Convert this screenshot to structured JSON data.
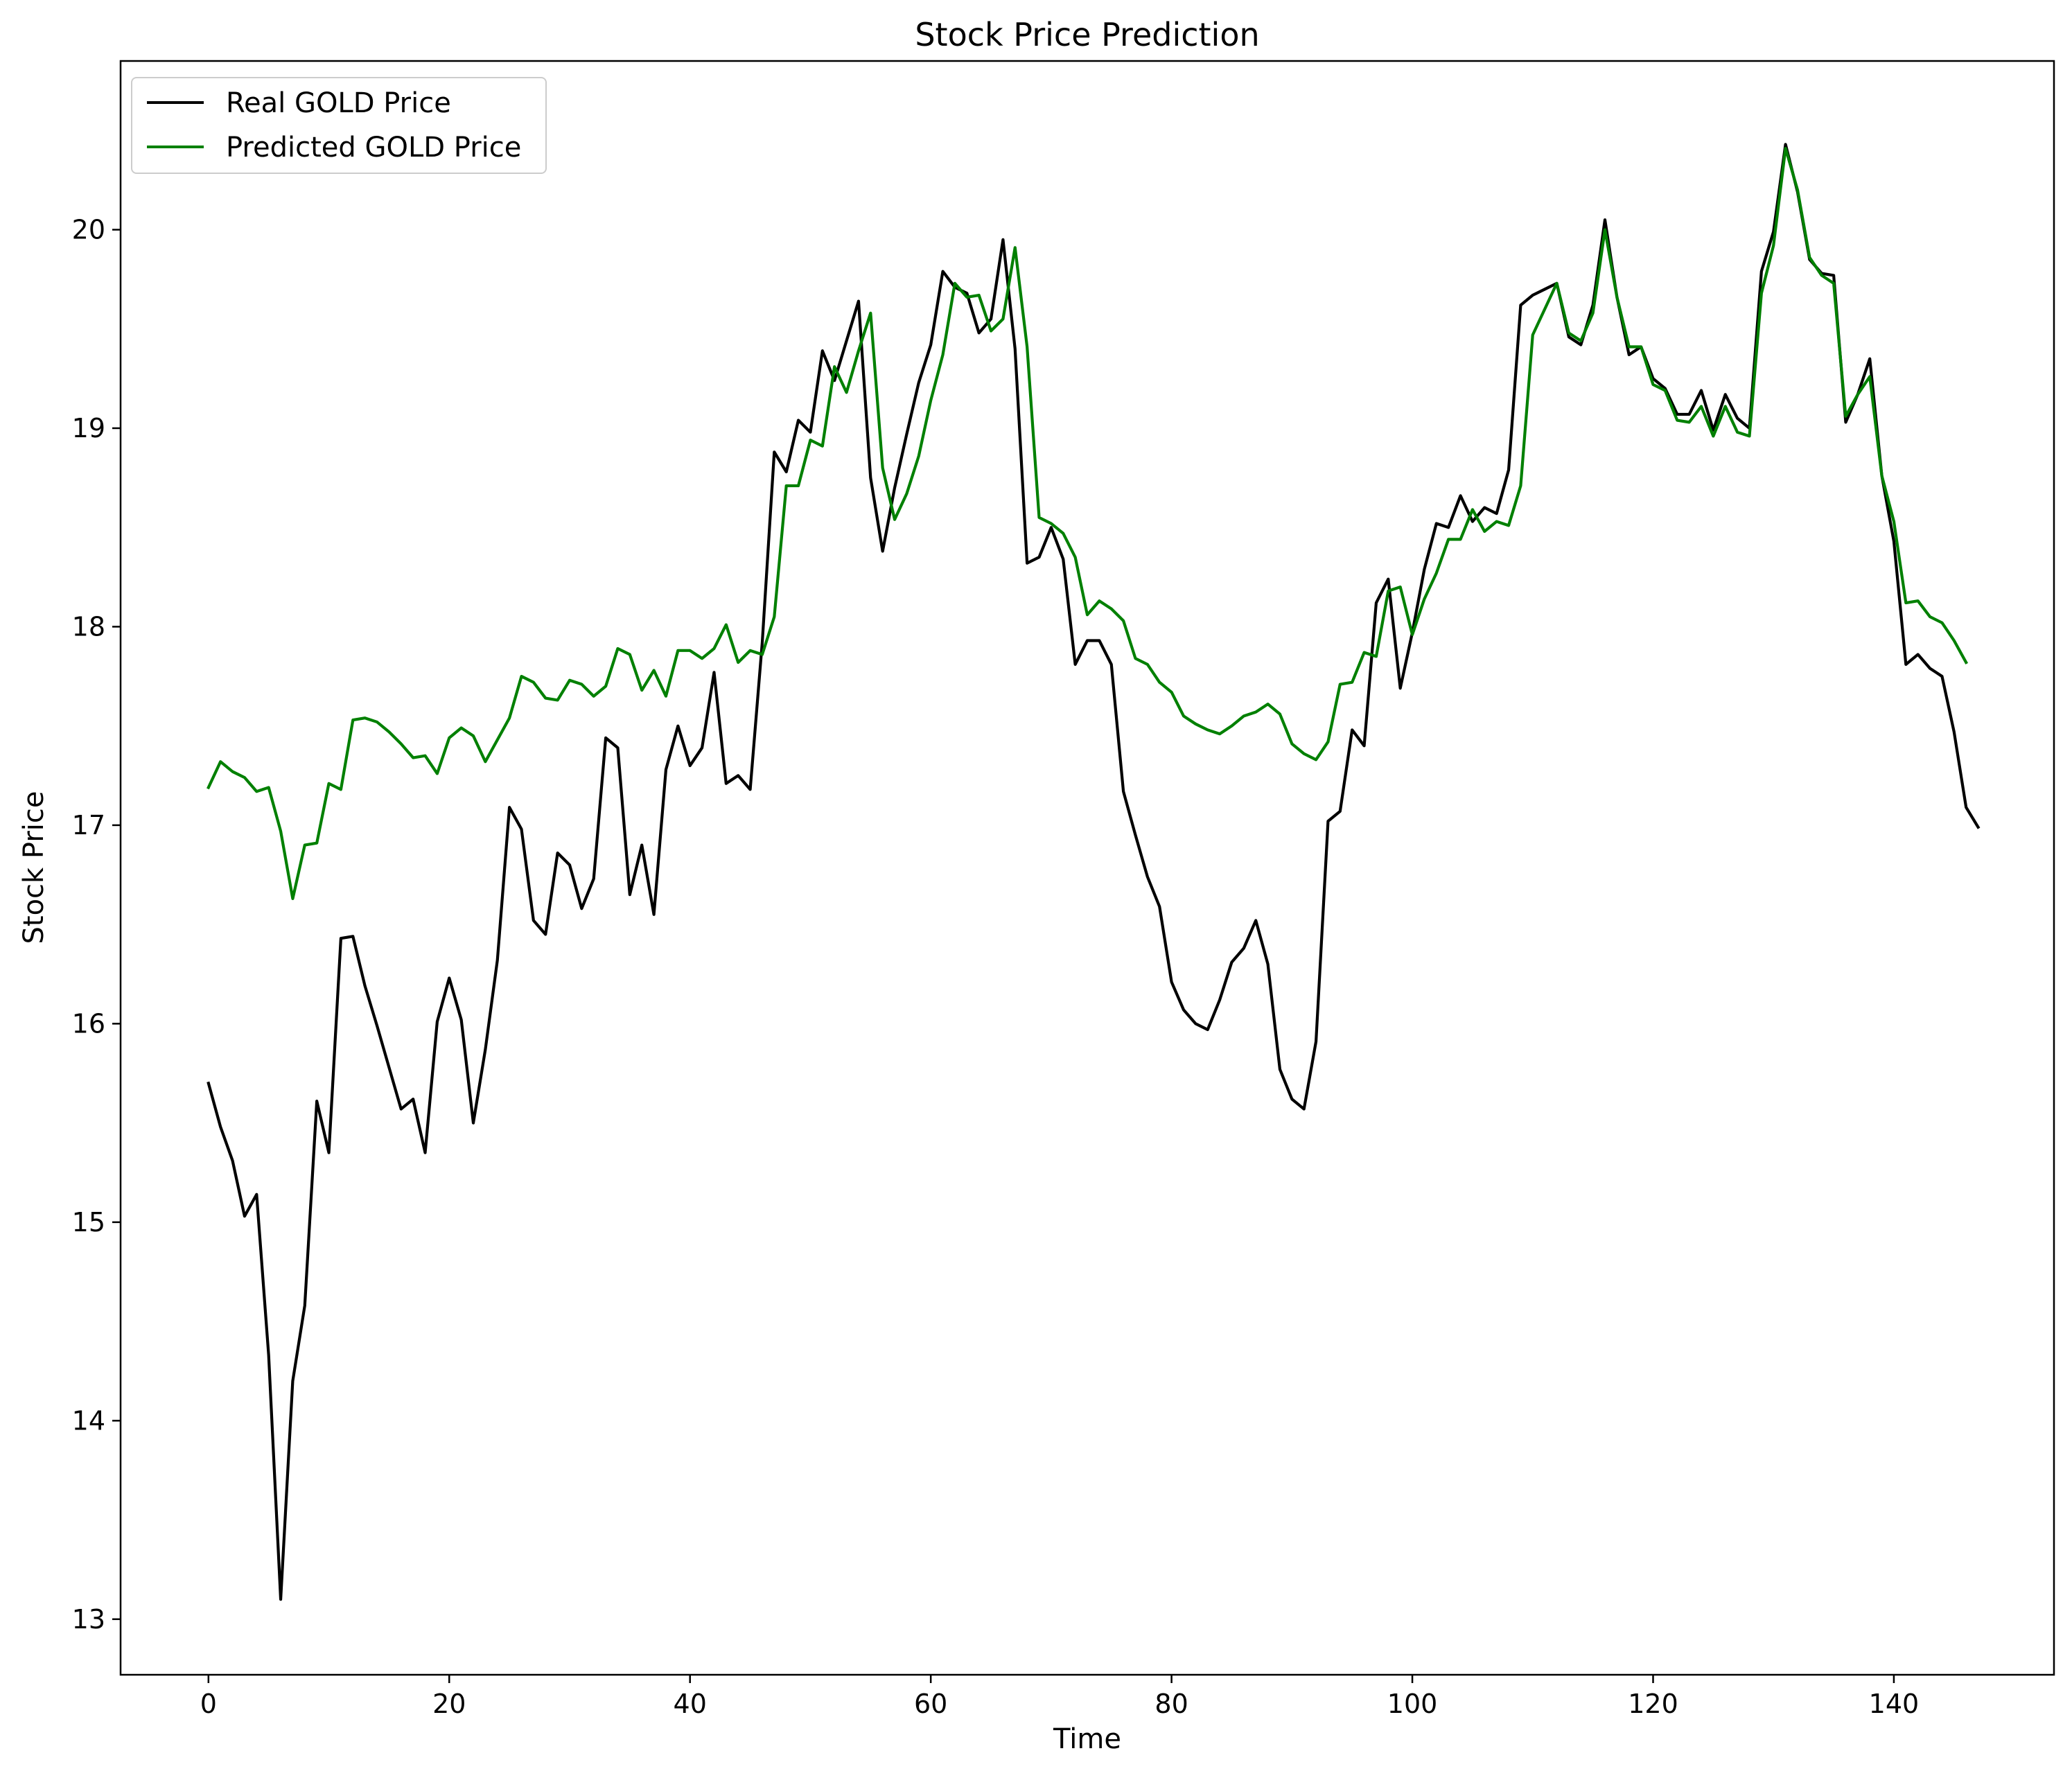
{
  "chart_data": {
    "type": "line",
    "title": "Stock Price Prediction",
    "xlabel": "Time",
    "ylabel": "Stock Price",
    "xlim": [
      -7.3,
      153.3
    ],
    "ylim": [
      12.72,
      20.85
    ],
    "x_ticks": [
      0,
      20,
      40,
      60,
      80,
      100,
      120,
      140
    ],
    "y_ticks": [
      13,
      14,
      15,
      16,
      17,
      18,
      19,
      20
    ],
    "grid": false,
    "legend_position": "top-left",
    "series": [
      {
        "name": "Real GOLD Price",
        "color": "#000000",
        "x_start": 0,
        "values": [
          15.7,
          15.48,
          15.31,
          15.03,
          15.14,
          14.33,
          13.1,
          14.2,
          14.58,
          15.61,
          15.35,
          16.43,
          16.44,
          16.19,
          15.99,
          15.78,
          15.57,
          15.62,
          15.35,
          16.01,
          16.23,
          16.02,
          15.5,
          15.87,
          16.32,
          17.09,
          16.98,
          16.52,
          16.45,
          16.86,
          16.8,
          16.58,
          16.73,
          17.44,
          17.39,
          16.65,
          16.9,
          16.55,
          17.28,
          17.5,
          17.3,
          17.39,
          17.77,
          17.21,
          17.25,
          17.18,
          17.92,
          18.88,
          18.78,
          19.04,
          18.98,
          19.39,
          19.24,
          19.44,
          19.64,
          18.75,
          18.38,
          18.7,
          18.97,
          19.23,
          19.42,
          19.79,
          19.71,
          19.68,
          19.48,
          19.55,
          19.95,
          19.4,
          18.32,
          18.35,
          18.5,
          18.34,
          17.81,
          17.93,
          17.93,
          17.81,
          17.17,
          16.95,
          16.74,
          16.59,
          16.21,
          16.07,
          16.0,
          15.97,
          16.12,
          16.31,
          16.38,
          16.52,
          16.3,
          15.77,
          15.62,
          15.57,
          15.91,
          17.02,
          17.07,
          17.48,
          17.4,
          18.12,
          18.24,
          17.69,
          17.97,
          18.29,
          18.52,
          18.5,
          18.66,
          18.53,
          18.6,
          18.57,
          18.79,
          19.62,
          19.67,
          19.7,
          19.73,
          19.46,
          19.42,
          19.62,
          20.05,
          19.66,
          19.37,
          19.41,
          19.25,
          19.2,
          19.07,
          19.07,
          19.19,
          18.99,
          19.17,
          19.05,
          19.0,
          19.79,
          19.99,
          20.43,
          20.19,
          19.85,
          19.78,
          19.77,
          19.03,
          19.17,
          19.35,
          18.76,
          18.43,
          17.81,
          17.86,
          17.79,
          17.75,
          17.47,
          17.09,
          16.99
        ]
      },
      {
        "name": "Predicted GOLD Price",
        "color": "#008000",
        "x_start": 0,
        "values": [
          17.19,
          17.32,
          17.27,
          17.24,
          17.17,
          17.19,
          16.97,
          16.63,
          16.9,
          16.91,
          17.21,
          17.18,
          17.53,
          17.54,
          17.52,
          17.47,
          17.41,
          17.34,
          17.35,
          17.26,
          17.44,
          17.49,
          17.45,
          17.32,
          17.43,
          17.54,
          17.75,
          17.72,
          17.64,
          17.63,
          17.73,
          17.71,
          17.65,
          17.7,
          17.89,
          17.86,
          17.68,
          17.78,
          17.65,
          17.88,
          17.88,
          17.84,
          17.89,
          18.01,
          17.82,
          17.88,
          17.86,
          18.05,
          18.71,
          18.71,
          18.94,
          18.91,
          19.31,
          19.18,
          19.39,
          19.58,
          18.8,
          18.54,
          18.67,
          18.86,
          19.14,
          19.37,
          19.73,
          19.66,
          19.67,
          19.49,
          19.55,
          19.91,
          19.41,
          18.55,
          18.52,
          18.47,
          18.35,
          18.06,
          18.13,
          18.09,
          18.03,
          17.84,
          17.81,
          17.72,
          17.67,
          17.55,
          17.51,
          17.48,
          17.46,
          17.5,
          17.55,
          17.57,
          17.61,
          17.56,
          17.41,
          17.36,
          17.33,
          17.42,
          17.71,
          17.72,
          17.87,
          17.85,
          18.18,
          18.2,
          17.96,
          18.14,
          18.27,
          18.44,
          18.44,
          18.59,
          18.48,
          18.53,
          18.51,
          18.71,
          19.47,
          19.6,
          19.73,
          19.48,
          19.44,
          19.58,
          20.0,
          19.66,
          19.41,
          19.41,
          19.22,
          19.19,
          19.04,
          19.03,
          19.11,
          18.96,
          19.11,
          18.98,
          18.96,
          19.68,
          19.92,
          20.41,
          20.2,
          19.86,
          19.77,
          19.73,
          19.06,
          19.17,
          19.26,
          18.76,
          18.53,
          18.12,
          18.13,
          18.05,
          18.02,
          17.93,
          17.82
        ]
      }
    ]
  }
}
